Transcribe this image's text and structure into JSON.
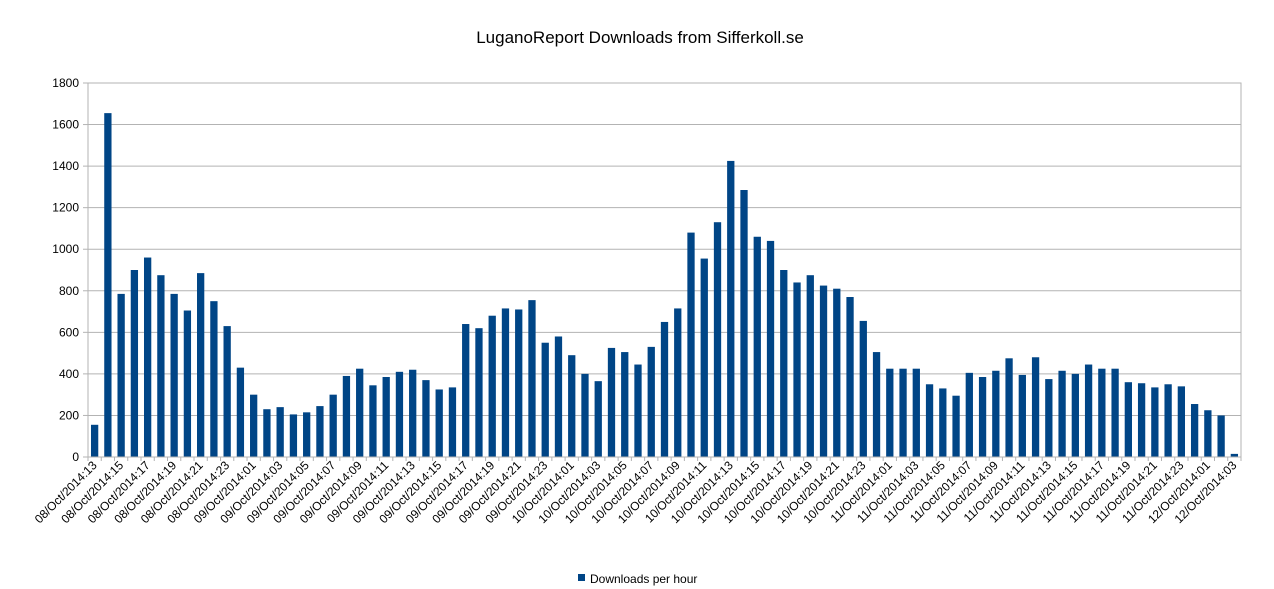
{
  "chart_data": {
    "type": "bar",
    "title": "LuganoReport Downloads from Sifferkoll.se",
    "xlabel": "",
    "ylabel": "",
    "ylim": [
      0,
      1800
    ],
    "yticks": [
      0,
      200,
      400,
      600,
      800,
      1000,
      1200,
      1400,
      1600,
      1800
    ],
    "grid": true,
    "legend_position": "bottom",
    "categories": [
      "08/Oct/2014:13",
      "08/Oct/2014:14",
      "08/Oct/2014:15",
      "08/Oct/2014:16",
      "08/Oct/2014:17",
      "08/Oct/2014:18",
      "08/Oct/2014:19",
      "08/Oct/2014:20",
      "08/Oct/2014:21",
      "08/Oct/2014:22",
      "08/Oct/2014:23",
      "09/Oct/2014:00",
      "09/Oct/2014:01",
      "09/Oct/2014:02",
      "09/Oct/2014:03",
      "09/Oct/2014:04",
      "09/Oct/2014:05",
      "09/Oct/2014:06",
      "09/Oct/2014:07",
      "09/Oct/2014:08",
      "09/Oct/2014:09",
      "09/Oct/2014:10",
      "09/Oct/2014:11",
      "09/Oct/2014:12",
      "09/Oct/2014:13",
      "09/Oct/2014:14",
      "09/Oct/2014:15",
      "09/Oct/2014:16",
      "09/Oct/2014:17",
      "09/Oct/2014:18",
      "09/Oct/2014:19",
      "09/Oct/2014:20",
      "09/Oct/2014:21",
      "09/Oct/2014:22",
      "09/Oct/2014:23",
      "10/Oct/2014:00",
      "10/Oct/2014:01",
      "10/Oct/2014:02",
      "10/Oct/2014:03",
      "10/Oct/2014:04",
      "10/Oct/2014:05",
      "10/Oct/2014:06",
      "10/Oct/2014:07",
      "10/Oct/2014:08",
      "10/Oct/2014:09",
      "10/Oct/2014:10",
      "10/Oct/2014:11",
      "10/Oct/2014:12",
      "10/Oct/2014:13",
      "10/Oct/2014:14",
      "10/Oct/2014:15",
      "10/Oct/2014:16",
      "10/Oct/2014:17",
      "10/Oct/2014:18",
      "10/Oct/2014:19",
      "10/Oct/2014:20",
      "10/Oct/2014:21",
      "10/Oct/2014:22",
      "10/Oct/2014:23",
      "11/Oct/2014:00",
      "11/Oct/2014:01",
      "11/Oct/2014:02",
      "11/Oct/2014:03",
      "11/Oct/2014:04",
      "11/Oct/2014:05",
      "11/Oct/2014:06",
      "11/Oct/2014:07",
      "11/Oct/2014:08",
      "11/Oct/2014:09",
      "11/Oct/2014:10",
      "11/Oct/2014:11",
      "11/Oct/2014:12",
      "11/Oct/2014:13",
      "11/Oct/2014:14",
      "11/Oct/2014:15",
      "11/Oct/2014:16",
      "11/Oct/2014:17",
      "11/Oct/2014:18",
      "11/Oct/2014:19",
      "11/Oct/2014:20",
      "11/Oct/2014:21",
      "11/Oct/2014:22",
      "11/Oct/2014:23",
      "12/Oct/2014:00",
      "12/Oct/2014:01",
      "12/Oct/2014:02",
      "12/Oct/2014:03"
    ],
    "tick_label_every": 2,
    "series": [
      {
        "name": "Downloads per hour",
        "color": "#004586",
        "values": [
          155,
          1655,
          785,
          900,
          960,
          875,
          785,
          705,
          885,
          750,
          630,
          430,
          300,
          230,
          240,
          205,
          215,
          245,
          300,
          390,
          425,
          345,
          385,
          410,
          420,
          370,
          325,
          335,
          640,
          620,
          680,
          715,
          710,
          755,
          550,
          580,
          490,
          400,
          365,
          525,
          505,
          445,
          530,
          650,
          715,
          1080,
          955,
          1130,
          1425,
          1285,
          1060,
          1040,
          900,
          840,
          875,
          825,
          810,
          770,
          655,
          505,
          425,
          425,
          425,
          350,
          330,
          295,
          405,
          385,
          415,
          475,
          395,
          480,
          375,
          415,
          400,
          445,
          425,
          425,
          360,
          355,
          335,
          350,
          340,
          255,
          225,
          200,
          15
        ]
      }
    ]
  }
}
